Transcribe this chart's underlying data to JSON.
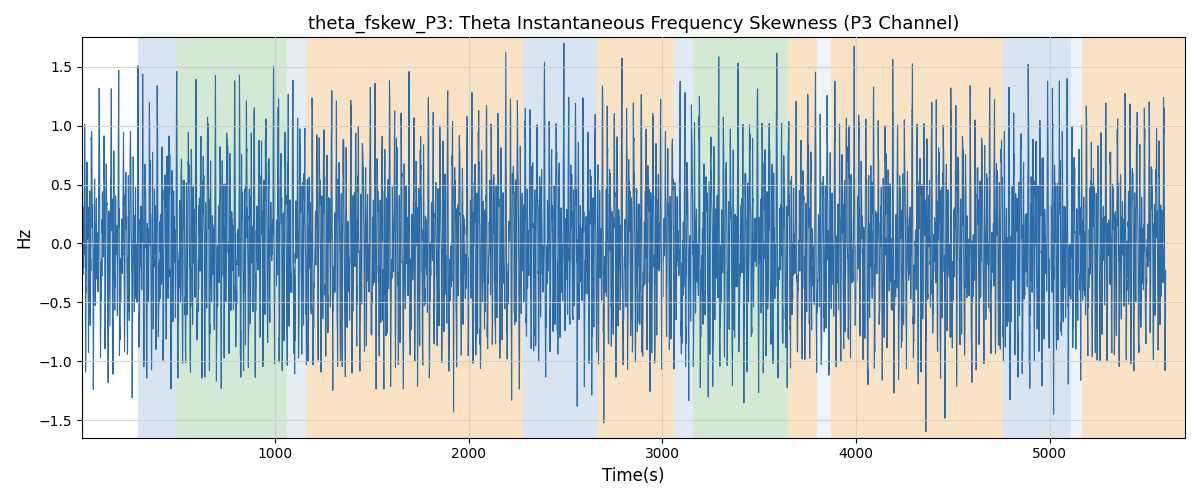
{
  "title": "theta_fskew_P3: Theta Instantaneous Frequency Skewness (P3 Channel)",
  "xlabel": "Time(s)",
  "ylabel": "Hz",
  "ylim": [
    -1.65,
    1.75
  ],
  "xlim": [
    0,
    5700
  ],
  "line_color": "#2b6ca8",
  "line_width": 0.8,
  "bg_regions": [
    {
      "xstart": 290,
      "xend": 490,
      "color": "#aac4e0",
      "alpha": 0.45
    },
    {
      "xstart": 490,
      "xend": 1060,
      "color": "#9ecf9e",
      "alpha": 0.45
    },
    {
      "xstart": 1060,
      "xend": 1160,
      "color": "#aac4e0",
      "alpha": 0.3
    },
    {
      "xstart": 1160,
      "xend": 2280,
      "color": "#f5c98a",
      "alpha": 0.5
    },
    {
      "xstart": 2280,
      "xend": 2660,
      "color": "#aac4e0",
      "alpha": 0.45
    },
    {
      "xstart": 2660,
      "xend": 3060,
      "color": "#f5c98a",
      "alpha": 0.5
    },
    {
      "xstart": 3060,
      "xend": 3160,
      "color": "#aac4e0",
      "alpha": 0.35
    },
    {
      "xstart": 3160,
      "xend": 3650,
      "color": "#9ecf9e",
      "alpha": 0.45
    },
    {
      "xstart": 3650,
      "xend": 3800,
      "color": "#f5c98a",
      "alpha": 0.5
    },
    {
      "xstart": 3800,
      "xend": 3870,
      "color": "#aac4e0",
      "alpha": 0.2
    },
    {
      "xstart": 3870,
      "xend": 4760,
      "color": "#f5c98a",
      "alpha": 0.5
    },
    {
      "xstart": 4760,
      "xend": 5110,
      "color": "#aac4e0",
      "alpha": 0.45
    },
    {
      "xstart": 5110,
      "xend": 5170,
      "color": "#aac4e0",
      "alpha": 0.2
    },
    {
      "xstart": 5170,
      "xend": 5700,
      "color": "#f5c98a",
      "alpha": 0.5
    }
  ],
  "grid_color": "#cccccc",
  "grid_alpha": 0.8,
  "tick_fontsize": 10,
  "label_fontsize": 12,
  "title_fontsize": 13,
  "xticks": [
    1000,
    2000,
    3000,
    4000,
    5000
  ],
  "yticks": [
    -1.5,
    -1.0,
    -0.5,
    0.0,
    0.5,
    1.0,
    1.5
  ]
}
